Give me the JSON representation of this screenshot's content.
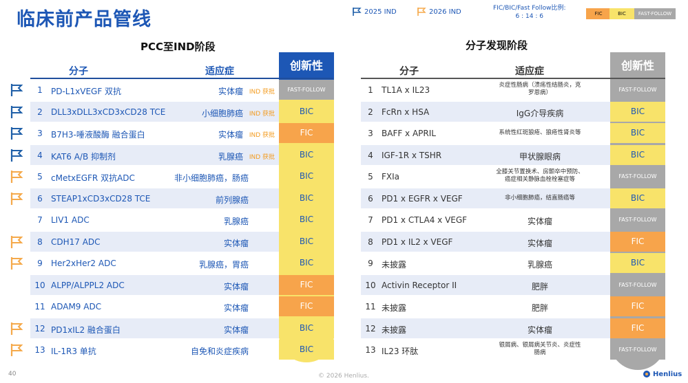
{
  "title": "临床前产品管线",
  "legend": {
    "item1": "2025 IND",
    "item2": "2026 IND",
    "ratio_line1": "FIC/BIC/Fast Follow比例:",
    "ratio_line2": "6 : 14 : 6",
    "fic": "FIC",
    "bic": "BIC",
    "ff": "FAST-FOLLOW",
    "colors": {
      "fic": "#f7a44b",
      "bic": "#f8e36a",
      "ff": "#a8a8a8",
      "flag2025": "#1f5fa8",
      "flag2026": "#f5a94a"
    }
  },
  "left": {
    "section_title": "PCC至IND阶段",
    "col_molecule": "分子",
    "col_indication": "适应症",
    "col_innovation": "创新性",
    "rows": [
      {
        "num": "1",
        "molecule": "PD-L1xVEGF 双抗",
        "indication": "实体瘤",
        "approved": "IND 获批",
        "innovation": "FAST-FOLLOW",
        "type": "ff",
        "flag": "2025"
      },
      {
        "num": "2",
        "molecule": "DLL3xDLL3xCD3xCD28 TCE",
        "indication": "小细胞肺癌",
        "approved": "IND 获批",
        "innovation": "BIC",
        "type": "bic",
        "flag": "2025"
      },
      {
        "num": "3",
        "molecule": "B7H3-唾液酸酶 融合蛋白",
        "indication": "实体瘤",
        "approved": "IND 获批",
        "innovation": "FIC",
        "type": "fic",
        "flag": "2025"
      },
      {
        "num": "4",
        "molecule": "KAT6 A/B 抑制剂",
        "indication": "乳腺癌",
        "approved": "IND 获批",
        "innovation": "BIC",
        "type": "bic",
        "flag": "2025"
      },
      {
        "num": "5",
        "molecule": "cMetxEGFR 双抗ADC",
        "indication": "非小细胞肺癌，肠癌",
        "approved": "",
        "innovation": "BIC",
        "type": "bic",
        "flag": "2026"
      },
      {
        "num": "6",
        "molecule": "STEAP1xCD3xCD28 TCE",
        "indication": "前列腺癌",
        "approved": "",
        "innovation": "BIC",
        "type": "bic",
        "flag": "2026"
      },
      {
        "num": "7",
        "molecule": "LIV1 ADC",
        "indication": "乳腺癌",
        "approved": "",
        "innovation": "BIC",
        "type": "bic",
        "flag": ""
      },
      {
        "num": "8",
        "molecule": "CDH17 ADC",
        "indication": "实体瘤",
        "approved": "",
        "innovation": "BIC",
        "type": "bic",
        "flag": "2026"
      },
      {
        "num": "9",
        "molecule": "Her2xHer2 ADC",
        "indication": "乳腺癌，胃癌",
        "approved": "",
        "innovation": "BIC",
        "type": "bic",
        "flag": "2026"
      },
      {
        "num": "10",
        "molecule": "ALPP/ALPPL2 ADC",
        "indication": "实体瘤",
        "approved": "",
        "innovation": "FIC",
        "type": "fic",
        "flag": ""
      },
      {
        "num": "11",
        "molecule": "ADAM9 ADC",
        "indication": "实体瘤",
        "approved": "",
        "innovation": "FIC",
        "type": "fic",
        "flag": ""
      },
      {
        "num": "12",
        "molecule": "PD1xIL2 融合蛋白",
        "indication": "实体瘤",
        "approved": "",
        "innovation": "BIC",
        "type": "bic",
        "flag": "2026"
      },
      {
        "num": "13",
        "molecule": "IL-1R3 单抗",
        "indication": "自免和炎症疾病",
        "approved": "",
        "innovation": "BIC",
        "type": "bic",
        "flag": "2026"
      }
    ]
  },
  "right": {
    "section_title": "分子发现阶段",
    "col_molecule": "分子",
    "col_indication": "适应症",
    "col_innovation": "创新性",
    "rows": [
      {
        "num": "1",
        "molecule": "TL1A x IL23",
        "ind1": "炎症性肠病（溃疡性结肠炎，克",
        "ind2": "罗恩病）",
        "innovation": "FAST-FOLLOW",
        "type": "ff"
      },
      {
        "num": "2",
        "molecule": "FcRn x HSA",
        "ind1": "IgG介导疾病",
        "ind2": "",
        "innovation": "BIC",
        "type": "bic"
      },
      {
        "num": "3",
        "molecule": "BAFF x APRIL",
        "ind1": "系统性红斑狼疮、狼疮性肾炎等",
        "ind2": "",
        "innovation": "BIC",
        "type": "bic"
      },
      {
        "num": "4",
        "molecule": "IGF-1R x TSHR",
        "ind1": "甲状腺眼病",
        "ind2": "",
        "innovation": "BIC",
        "type": "bic"
      },
      {
        "num": "5",
        "molecule": "FXIa",
        "ind1": "全膝关节置换术、房颤卒中预防、",
        "ind2": "癌症相关静脉血栓栓塞症等",
        "innovation": "FAST-FOLLOW",
        "type": "ff"
      },
      {
        "num": "6",
        "molecule": "PD1 x EGFR x VEGF",
        "ind1": "非小细胞肺癌，结直肠癌等",
        "ind2": "",
        "innovation": "BIC",
        "type": "bic"
      },
      {
        "num": "7",
        "molecule": "PD1 x CTLA4 x VEGF",
        "ind1": "实体瘤",
        "ind2": "",
        "innovation": "FAST-FOLLOW",
        "type": "ff"
      },
      {
        "num": "8",
        "molecule": "PD1 x IL2 x VEGF",
        "ind1": "实体瘤",
        "ind2": "",
        "innovation": "FIC",
        "type": "fic"
      },
      {
        "num": "9",
        "molecule": "未披露",
        "ind1": "乳腺癌",
        "ind2": "",
        "innovation": "BIC",
        "type": "bic"
      },
      {
        "num": "10",
        "molecule": "Activin Receptor II",
        "ind1": "肥胖",
        "ind2": "",
        "innovation": "FAST-FOLLOW",
        "type": "ff"
      },
      {
        "num": "11",
        "molecule": "未披露",
        "ind1": "肥胖",
        "ind2": "",
        "innovation": "FIC",
        "type": "fic"
      },
      {
        "num": "12",
        "molecule": "未披露",
        "ind1": "实体瘤",
        "ind2": "",
        "innovation": "FIC",
        "type": "fic"
      },
      {
        "num": "13",
        "molecule": "IL23 环肽",
        "ind1": "银屑病、银屑病关节炎、炎症性",
        "ind2": "肠病",
        "innovation": "FAST-FOLLOW",
        "type": "ff"
      }
    ]
  },
  "footer": {
    "page": "40",
    "copyright": "© 2026 Henlius.",
    "logo": "Henlius"
  }
}
